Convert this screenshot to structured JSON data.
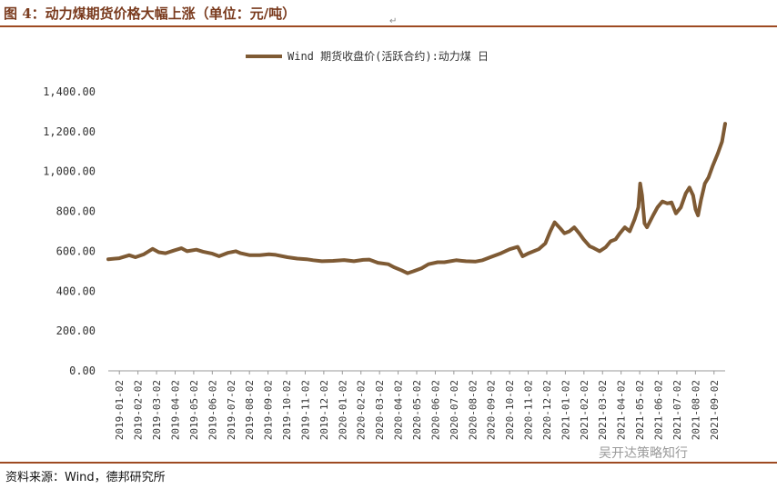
{
  "header": {
    "figure_title": "图 4：动力煤期货价格大幅上涨（单位：元/吨）"
  },
  "footer": {
    "source": "资料来源：Wind，德邦研究所",
    "watermark": "吴开达策略知行"
  },
  "colors": {
    "series": "#7e5a34",
    "rule": "#9e4a22",
    "title": "#7a3b1e"
  },
  "chart_data": {
    "type": "line",
    "title": "",
    "legend": {
      "labels": [
        "Wind 期货收盘价(活跃合约):动力煤 日"
      ],
      "placement": "top-center"
    },
    "y_ticks": [
      "0.00",
      "200.00",
      "400.00",
      "600.00",
      "800.00",
      "1,000.00",
      "1,200.00",
      "1,400.00"
    ],
    "x_ticks": [
      "2019-01-02",
      "2019-02-02",
      "2019-03-02",
      "2019-04-02",
      "2019-05-02",
      "2019-06-02",
      "2019-07-02",
      "2019-08-02",
      "2019-09-02",
      "2019-10-02",
      "2019-11-02",
      "2019-12-02",
      "2020-01-02",
      "2020-02-02",
      "2020-03-02",
      "2020-04-02",
      "2020-05-02",
      "2020-06-02",
      "2020-07-02",
      "2020-08-02",
      "2020-09-02",
      "2020-10-02",
      "2020-11-02",
      "2020-12-02",
      "2021-01-02",
      "2021-02-02",
      "2021-03-02",
      "2021-04-02",
      "2021-05-02",
      "2021-06-02",
      "2021-07-02",
      "2021-08-02",
      "2021-09-02"
    ],
    "ylim": [
      0,
      1400
    ],
    "xlim": [
      "2019-01-02",
      "2021-09-30"
    ],
    "grid": false,
    "series": [
      {
        "name": "Wind 期货收盘价(活跃合约):动力煤 日",
        "points": [
          [
            "2019-01-02",
            560
          ],
          [
            "2019-01-20",
            565
          ],
          [
            "2019-02-05",
            580
          ],
          [
            "2019-02-15",
            570
          ],
          [
            "2019-03-01",
            585
          ],
          [
            "2019-03-15",
            612
          ],
          [
            "2019-03-25",
            595
          ],
          [
            "2019-04-05",
            590
          ],
          [
            "2019-04-20",
            605
          ],
          [
            "2019-05-01",
            615
          ],
          [
            "2019-05-10",
            600
          ],
          [
            "2019-05-25",
            608
          ],
          [
            "2019-06-05",
            598
          ],
          [
            "2019-06-20",
            588
          ],
          [
            "2019-07-01",
            575
          ],
          [
            "2019-07-15",
            592
          ],
          [
            "2019-07-28",
            600
          ],
          [
            "2019-08-05",
            590
          ],
          [
            "2019-08-20",
            580
          ],
          [
            "2019-09-05",
            580
          ],
          [
            "2019-09-20",
            585
          ],
          [
            "2019-10-01",
            582
          ],
          [
            "2019-10-20",
            570
          ],
          [
            "2019-11-05",
            563
          ],
          [
            "2019-11-20",
            560
          ],
          [
            "2019-12-01",
            555
          ],
          [
            "2019-12-15",
            550
          ],
          [
            "2020-01-02",
            552
          ],
          [
            "2020-01-20",
            556
          ],
          [
            "2020-02-05",
            550
          ],
          [
            "2020-02-20",
            557
          ],
          [
            "2020-03-01",
            558
          ],
          [
            "2020-03-15",
            542
          ],
          [
            "2020-04-01",
            535
          ],
          [
            "2020-04-10",
            520
          ],
          [
            "2020-04-22",
            505
          ],
          [
            "2020-05-02",
            490
          ],
          [
            "2020-05-12",
            500
          ],
          [
            "2020-05-25",
            515
          ],
          [
            "2020-06-05",
            535
          ],
          [
            "2020-06-20",
            545
          ],
          [
            "2020-07-01",
            545
          ],
          [
            "2020-07-20",
            555
          ],
          [
            "2020-08-05",
            550
          ],
          [
            "2020-08-20",
            548
          ],
          [
            "2020-09-01",
            555
          ],
          [
            "2020-09-15",
            572
          ],
          [
            "2020-10-01",
            590
          ],
          [
            "2020-10-15",
            610
          ],
          [
            "2020-10-28",
            622
          ],
          [
            "2020-11-05",
            575
          ],
          [
            "2020-11-15",
            590
          ],
          [
            "2020-12-01",
            610
          ],
          [
            "2020-12-12",
            640
          ],
          [
            "2020-12-20",
            700
          ],
          [
            "2020-12-27",
            745
          ],
          [
            "2021-01-05",
            715
          ],
          [
            "2021-01-12",
            690
          ],
          [
            "2021-01-20",
            700
          ],
          [
            "2021-01-28",
            720
          ],
          [
            "2021-02-05",
            690
          ],
          [
            "2021-02-12",
            660
          ],
          [
            "2021-02-22",
            625
          ],
          [
            "2021-03-01",
            615
          ],
          [
            "2021-03-10",
            600
          ],
          [
            "2021-03-20",
            620
          ],
          [
            "2021-03-28",
            650
          ],
          [
            "2021-04-05",
            660
          ],
          [
            "2021-04-12",
            690
          ],
          [
            "2021-04-20",
            720
          ],
          [
            "2021-04-28",
            700
          ],
          [
            "2021-05-06",
            760
          ],
          [
            "2021-05-12",
            820
          ],
          [
            "2021-05-15",
            940
          ],
          [
            "2021-05-18",
            880
          ],
          [
            "2021-05-22",
            740
          ],
          [
            "2021-05-26",
            720
          ],
          [
            "2021-06-05",
            780
          ],
          [
            "2021-06-12",
            820
          ],
          [
            "2021-06-20",
            850
          ],
          [
            "2021-06-28",
            840
          ],
          [
            "2021-07-05",
            845
          ],
          [
            "2021-07-12",
            790
          ],
          [
            "2021-07-20",
            820
          ],
          [
            "2021-07-28",
            890
          ],
          [
            "2021-08-03",
            920
          ],
          [
            "2021-08-09",
            880
          ],
          [
            "2021-08-13",
            810
          ],
          [
            "2021-08-17",
            780
          ],
          [
            "2021-08-22",
            860
          ],
          [
            "2021-08-28",
            940
          ],
          [
            "2021-09-03",
            970
          ],
          [
            "2021-09-10",
            1030
          ],
          [
            "2021-09-18",
            1090
          ],
          [
            "2021-09-25",
            1150
          ],
          [
            "2021-09-30",
            1240
          ]
        ]
      }
    ]
  }
}
